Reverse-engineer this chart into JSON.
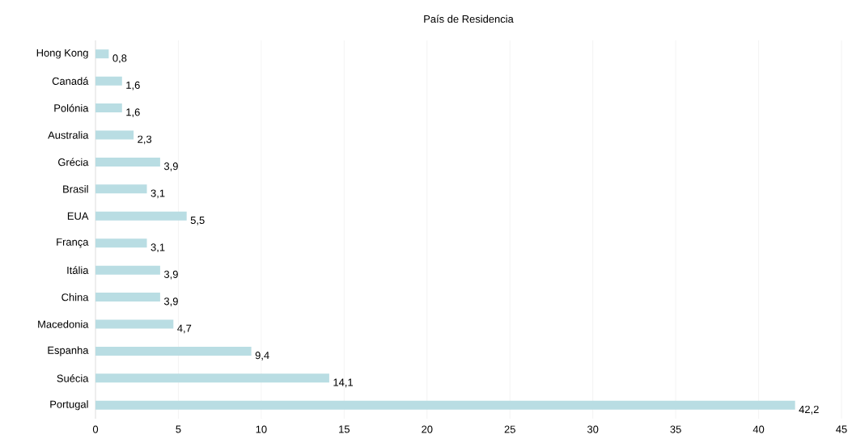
{
  "chart_data": {
    "type": "bar",
    "orientation": "horizontal",
    "title": "País de Residencia",
    "categories": [
      "Hong Kong",
      "Canadá",
      "Polónia",
      "Australia",
      "Grécia",
      "Brasil",
      "EUA",
      "França",
      "Itália",
      "China",
      "Macedonia",
      "Espanha",
      "Suécia",
      "Portugal"
    ],
    "values": [
      0.8,
      1.6,
      1.6,
      2.3,
      3.9,
      3.1,
      5.5,
      3.1,
      3.9,
      3.9,
      4.7,
      9.4,
      14.1,
      42.2
    ],
    "value_labels": [
      "0,8",
      "1,6",
      "1,6",
      "2,3",
      "3,9",
      "3,1",
      "5,5",
      "3,1",
      "3,9",
      "3,9",
      "4,7",
      "9,4",
      "14,1",
      "42,2"
    ],
    "color": "#b9dde3",
    "xlim": [
      0,
      45
    ],
    "xticks": [
      0,
      5,
      10,
      15,
      20,
      25,
      30,
      35,
      40,
      45
    ],
    "grid": "x"
  }
}
